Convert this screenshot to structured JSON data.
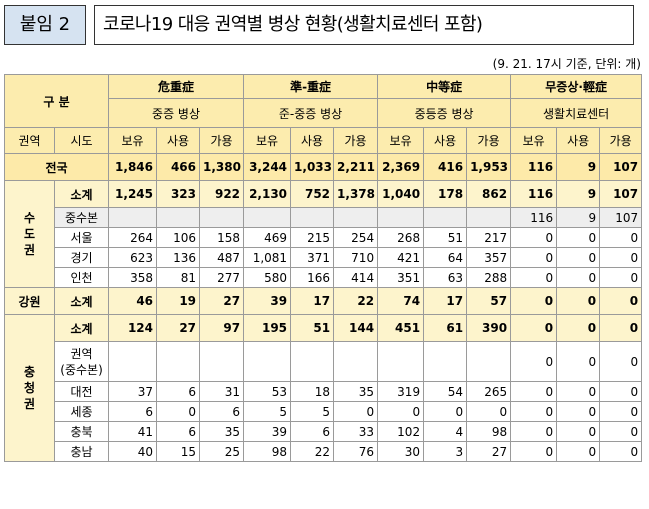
{
  "badge": "붙임 2",
  "title": "코로나19 대응 권역별 병상 현황(생활치료센터 포함)",
  "note": "(9. 21. 17시 기준, 단위: 개)",
  "header": {
    "gubun": "구 분",
    "groups": [
      {
        "name": "危重症",
        "sub": "중증 병상"
      },
      {
        "name": "準-重症",
        "sub": "준-중증 병상"
      },
      {
        "name": "中等症",
        "sub": "중등증 병상"
      },
      {
        "name": "무증상·輕症",
        "sub": "생활치료센터"
      }
    ],
    "region_col": "권역",
    "city_col": "시도",
    "cols": [
      "보유",
      "사용",
      "가용"
    ]
  },
  "national": {
    "label": "전국",
    "values": [
      "1,846",
      "466",
      "1,380",
      "3,244",
      "1,033",
      "2,211",
      "2,369",
      "416",
      "1,953",
      "116",
      "9",
      "107"
    ]
  },
  "regions": [
    {
      "name": "수도권",
      "rows": [
        {
          "label": "소계",
          "type": "sub",
          "values": [
            "1,245",
            "323",
            "922",
            "2,130",
            "752",
            "1,378",
            "1,040",
            "178",
            "862",
            "116",
            "9",
            "107"
          ]
        },
        {
          "label": "중수본",
          "type": "grey",
          "values": [
            "",
            "",
            "",
            "",
            "",
            "",
            "",
            "",
            "",
            "116",
            "9",
            "107"
          ]
        },
        {
          "label": "서울",
          "type": "row",
          "values": [
            "264",
            "106",
            "158",
            "469",
            "215",
            "254",
            "268",
            "51",
            "217",
            "0",
            "0",
            "0"
          ]
        },
        {
          "label": "경기",
          "type": "row",
          "values": [
            "623",
            "136",
            "487",
            "1,081",
            "371",
            "710",
            "421",
            "64",
            "357",
            "0",
            "0",
            "0"
          ]
        },
        {
          "label": "인천",
          "type": "row",
          "values": [
            "358",
            "81",
            "277",
            "580",
            "166",
            "414",
            "351",
            "63",
            "288",
            "0",
            "0",
            "0"
          ]
        }
      ]
    },
    {
      "name": "강원",
      "rows": [
        {
          "label": "소계",
          "type": "sub",
          "values": [
            "46",
            "19",
            "27",
            "39",
            "17",
            "22",
            "74",
            "17",
            "57",
            "0",
            "0",
            "0"
          ]
        }
      ]
    },
    {
      "name": "충청권",
      "rows": [
        {
          "label": "소계",
          "type": "sub",
          "values": [
            "124",
            "27",
            "97",
            "195",
            "51",
            "144",
            "451",
            "61",
            "390",
            "0",
            "0",
            "0"
          ]
        },
        {
          "label": "권역\n(중수본)",
          "type": "tall",
          "values": [
            "",
            "",
            "",
            "",
            "",
            "",
            "",
            "",
            "",
            "0",
            "0",
            "0"
          ]
        },
        {
          "label": "대전",
          "type": "row",
          "values": [
            "37",
            "6",
            "31",
            "53",
            "18",
            "35",
            "319",
            "54",
            "265",
            "0",
            "0",
            "0"
          ]
        },
        {
          "label": "세종",
          "type": "row",
          "values": [
            "6",
            "0",
            "6",
            "5",
            "5",
            "0",
            "0",
            "0",
            "0",
            "0",
            "0",
            "0"
          ]
        },
        {
          "label": "충북",
          "type": "row",
          "values": [
            "41",
            "6",
            "35",
            "39",
            "6",
            "33",
            "102",
            "4",
            "98",
            "0",
            "0",
            "0"
          ]
        },
        {
          "label": "충남",
          "type": "row",
          "values": [
            "40",
            "15",
            "25",
            "98",
            "22",
            "76",
            "30",
            "3",
            "27",
            "0",
            "0",
            "0"
          ]
        }
      ]
    }
  ]
}
